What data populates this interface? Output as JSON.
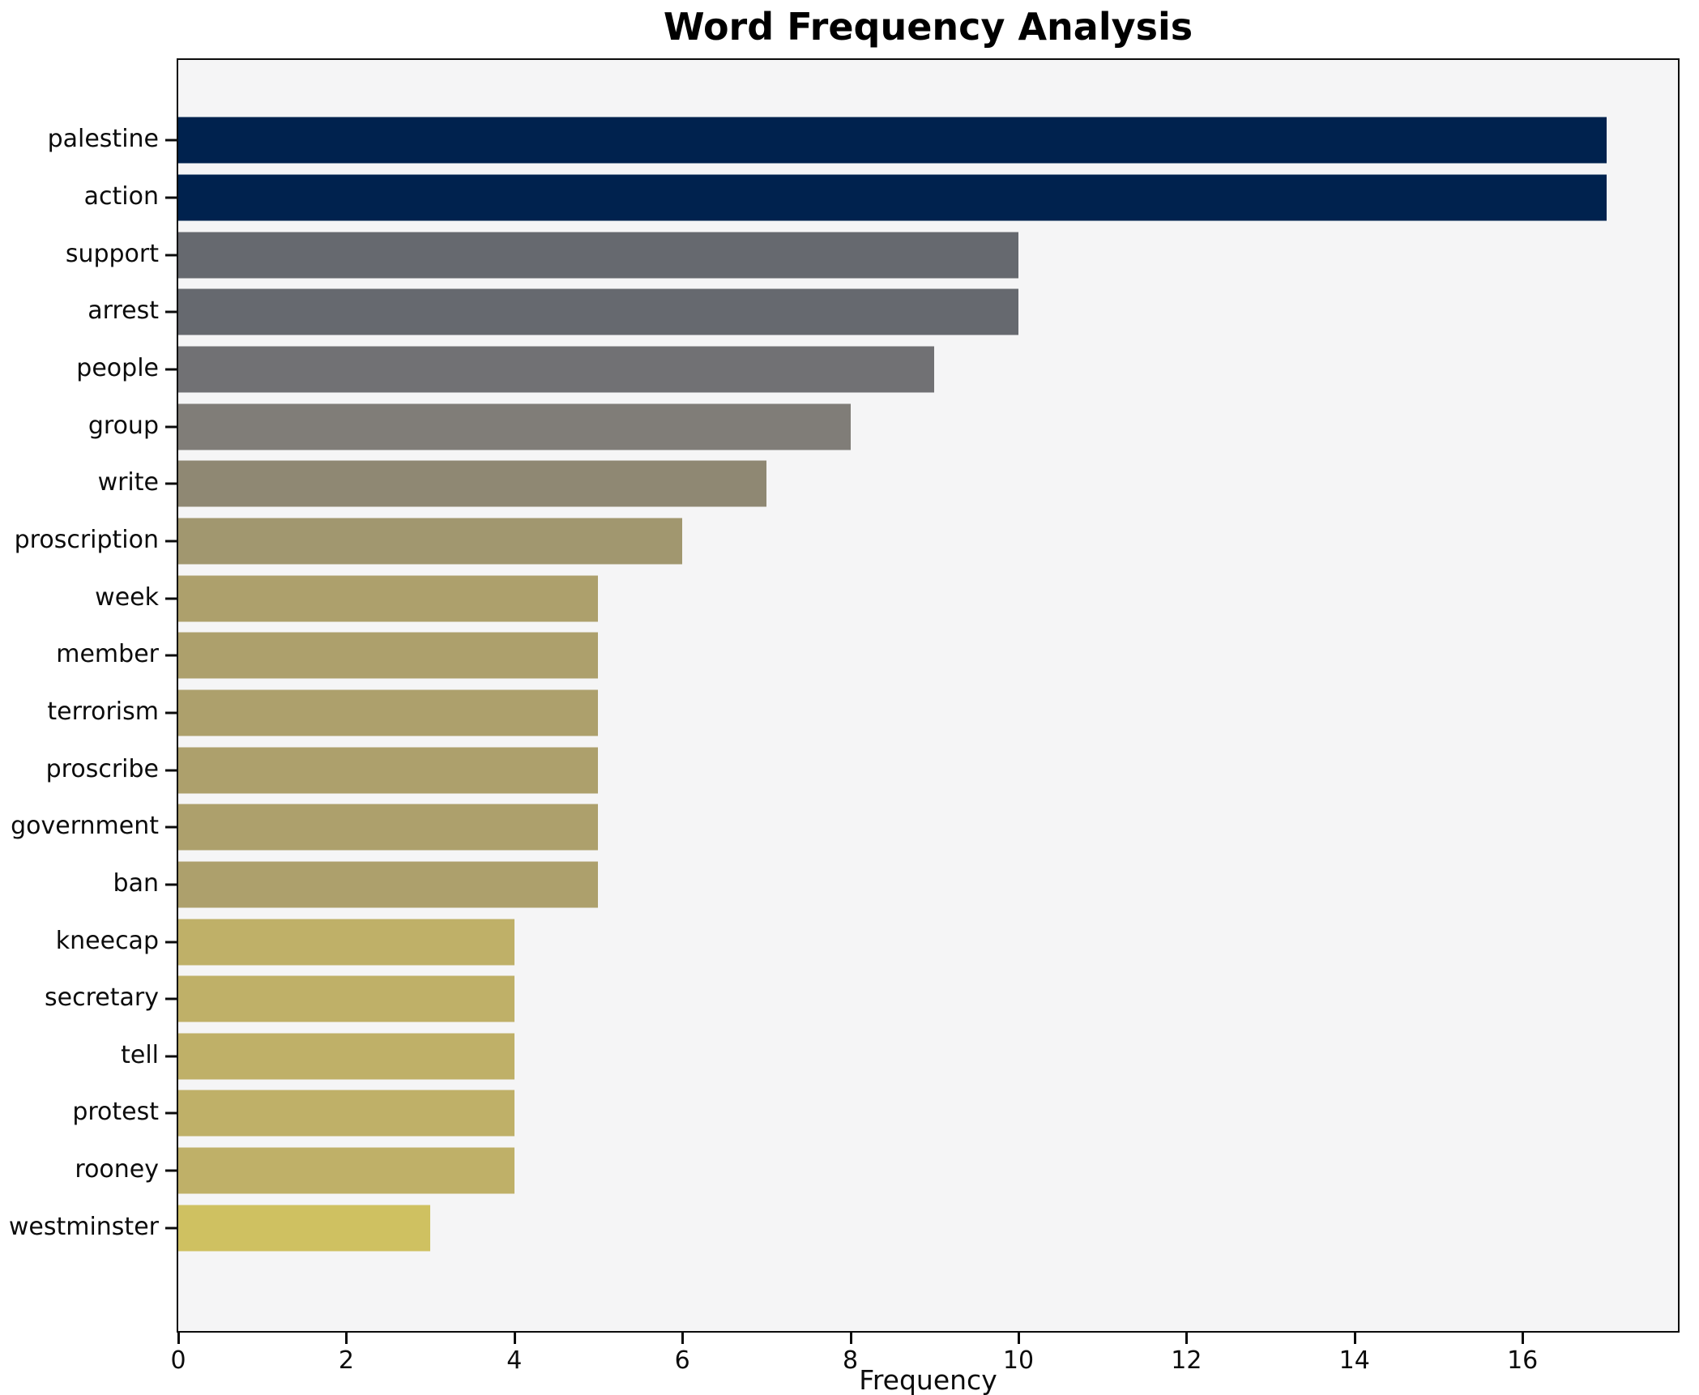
{
  "chart_data": {
    "type": "bar",
    "orientation": "horizontal",
    "title": "Word Frequency Analysis",
    "xlabel": "Frequency",
    "ylabel": "",
    "categories": [
      "palestine",
      "action",
      "support",
      "arrest",
      "people",
      "group",
      "write",
      "proscription",
      "week",
      "member",
      "terrorism",
      "proscribe",
      "government",
      "ban",
      "kneecap",
      "secretary",
      "tell",
      "protest",
      "rooney",
      "westminster"
    ],
    "values": [
      17,
      17,
      10,
      10,
      9,
      8,
      7,
      6,
      5,
      5,
      5,
      5,
      5,
      5,
      4,
      4,
      4,
      4,
      4,
      3
    ],
    "bar_colors": [
      "#00224e",
      "#00224e",
      "#66696f",
      "#66696f",
      "#717174",
      "#807d78",
      "#8f8873",
      "#a1976f",
      "#ada06c",
      "#ada06c",
      "#ada06c",
      "#ada06c",
      "#ada06c",
      "#ada06c",
      "#bfb068",
      "#bfb068",
      "#bfb068",
      "#bfb068",
      "#bfb068",
      "#cfc161"
    ],
    "xticks": [
      0,
      2,
      4,
      6,
      8,
      10,
      12,
      14,
      16
    ],
    "xlim": [
      0,
      17.85
    ],
    "grid": false,
    "legend": null,
    "plot_background": "#f5f5f6",
    "figure_background": "#ffffff"
  }
}
